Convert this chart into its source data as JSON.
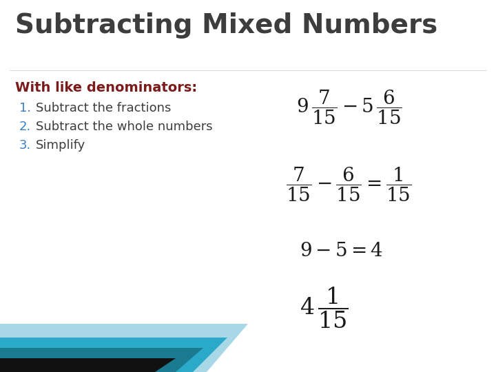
{
  "title": "Subtracting Mixed Numbers",
  "title_color": "#3d3d3d",
  "title_fontsize": 28,
  "subtitle": "With like denominators:",
  "subtitle_color": "#7b1a1a",
  "subtitle_fontsize": 14,
  "items": [
    "Subtract the fractions",
    "Subtract the whole numbers",
    "Simplify"
  ],
  "item_numbers_color": "#3a7fc1",
  "item_text_color": "#3d3d3d",
  "item_fontsize": 13,
  "bg_color": "#ffffff",
  "math_color": "#1a1a1a",
  "math_fontsize_large": 20,
  "math_fontsize_medium": 18,
  "stripe_colors": [
    "#d0eaf2",
    "#2aa8c4",
    "#1a7a90",
    "#111111"
  ]
}
